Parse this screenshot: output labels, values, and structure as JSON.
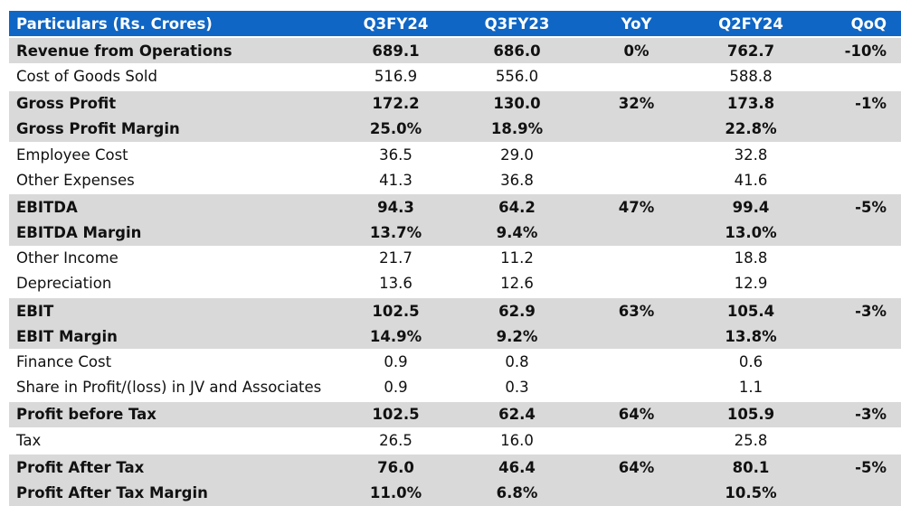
{
  "header": [
    "Particulars (Rs. Crores)",
    "Q3FY24",
    "Q3FY23",
    "YoY",
    "Q2FY24",
    "QoQ"
  ],
  "rows": [
    {
      "bold": true,
      "cells": [
        "Revenue from Operations",
        "689.1",
        "686.0",
        "0%",
        "762.7",
        "-10%"
      ]
    },
    {
      "bold": false,
      "cells": [
        "Cost of Goods Sold",
        "516.9",
        "556.0",
        "",
        "588.8",
        ""
      ]
    },
    {
      "bold": true,
      "cells": [
        "Gross Profit",
        "172.2",
        "130.0",
        "32%",
        "173.8",
        "-1%"
      ]
    },
    {
      "bold": true,
      "cells": [
        "Gross Profit Margin",
        "25.0%",
        "18.9%",
        "",
        "22.8%",
        ""
      ]
    },
    {
      "bold": false,
      "cells": [
        "Employee Cost",
        "36.5",
        "29.0",
        "",
        "32.8",
        ""
      ]
    },
    {
      "bold": false,
      "cells": [
        "Other Expenses",
        "41.3",
        "36.8",
        "",
        "41.6",
        ""
      ]
    },
    {
      "bold": true,
      "cells": [
        "EBITDA",
        "94.3",
        "64.2",
        "47%",
        "99.4",
        "-5%"
      ]
    },
    {
      "bold": true,
      "cells": [
        "EBITDA Margin",
        "13.7%",
        "9.4%",
        "",
        "13.0%",
        ""
      ]
    },
    {
      "bold": false,
      "cells": [
        "Other Income",
        "21.7",
        "11.2",
        "",
        "18.8",
        ""
      ]
    },
    {
      "bold": false,
      "cells": [
        "Depreciation",
        "13.6",
        "12.6",
        "",
        "12.9",
        ""
      ]
    },
    {
      "bold": true,
      "cells": [
        "EBIT",
        "102.5",
        "62.9",
        "63%",
        "105.4",
        "-3%"
      ]
    },
    {
      "bold": true,
      "cells": [
        "EBIT Margin",
        "14.9%",
        "9.2%",
        "",
        "13.8%",
        ""
      ]
    },
    {
      "bold": false,
      "cells": [
        "Finance Cost",
        "0.9",
        "0.8",
        "",
        "0.6",
        ""
      ]
    },
    {
      "bold": false,
      "cells": [
        "Share in Profit/(loss) in JV and Associates",
        "0.9",
        "0.3",
        "",
        "1.1",
        ""
      ]
    },
    {
      "bold": true,
      "cells": [
        "Profit before Tax",
        "102.5",
        "62.4",
        "64%",
        "105.9",
        "-3%"
      ]
    },
    {
      "bold": false,
      "cells": [
        "Tax",
        "26.5",
        "16.0",
        "",
        "25.8",
        ""
      ]
    },
    {
      "bold": true,
      "cells": [
        "Profit After Tax",
        "76.0",
        "46.4",
        "64%",
        "80.1",
        "-5%"
      ]
    },
    {
      "bold": true,
      "cells": [
        "Profit After Tax Margin",
        "11.0%",
        "6.8%",
        "",
        "10.5%",
        ""
      ]
    }
  ],
  "colors": {
    "header_bg": "#0f66c4",
    "highlight_bg": "#d9d9d9"
  }
}
